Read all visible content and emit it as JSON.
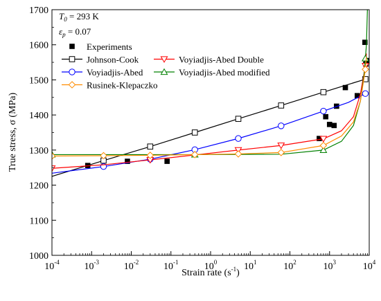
{
  "chart_data": {
    "type": "line",
    "xlabel_main": "Strain rate (s",
    "xlabel_sup": "-1",
    "xlabel_end": ")",
    "ylabel": "True stress, σ (MPa)",
    "x_scale": "log",
    "xlim": [
      0.0001,
      10000
    ],
    "ylim": [
      1000,
      1700
    ],
    "grid": false,
    "legend_position": "top-left",
    "x_ticks": [
      {
        "base": "10",
        "exp": "-4"
      },
      {
        "base": "10",
        "exp": "-3"
      },
      {
        "base": "10",
        "exp": "-2"
      },
      {
        "base": "10",
        "exp": "-1"
      },
      {
        "base": "10",
        "exp": "0"
      },
      {
        "base": "10",
        "exp": "1"
      },
      {
        "base": "10",
        "exp": "2"
      },
      {
        "base": "10",
        "exp": "3"
      },
      {
        "base": "10",
        "exp": "4"
      }
    ],
    "y_ticks": [
      "1000",
      "1100",
      "1200",
      "1300",
      "1400",
      "1500",
      "1600",
      "1700"
    ],
    "annotations": {
      "t0_main": "T",
      "t0_sub": "0",
      "t0_rest": " = 293 K",
      "ep_main": "ε",
      "ep_sub": "p",
      "ep_rest": " = 0.07"
    },
    "series": [
      {
        "name": "Experiments",
        "kind": "points",
        "color": "#000000",
        "marker": "filled-square",
        "points": [
          [
            0.0008,
            1256
          ],
          [
            0.008,
            1268
          ],
          [
            0.08,
            1268
          ],
          [
            550,
            1333
          ],
          [
            800,
            1395
          ],
          [
            1000,
            1373
          ],
          [
            1300,
            1370
          ],
          [
            1500,
            1425
          ],
          [
            2500,
            1478
          ],
          [
            5000,
            1455
          ],
          [
            7800,
            1607
          ],
          [
            8200,
            1545
          ],
          [
            8500,
            1555
          ]
        ]
      },
      {
        "name": "Johnson-Cook",
        "kind": "line",
        "color": "#000000",
        "marker": "open-square",
        "points": [
          [
            0.0001,
            1225
          ],
          [
            0.002,
            1270
          ],
          [
            0.03,
            1310
          ],
          [
            0.4,
            1350
          ],
          [
            5,
            1389
          ],
          [
            60,
            1427
          ],
          [
            700,
            1465
          ],
          [
            8000,
            1502
          ]
        ],
        "marker_x": [
          0.002,
          0.03,
          0.4,
          5,
          60,
          700,
          8000
        ]
      },
      {
        "name": "Voyiadjis-Abed",
        "kind": "line",
        "color": "#0000ff",
        "marker": "open-circle",
        "points": [
          [
            0.0001,
            1234
          ],
          [
            0.002,
            1253
          ],
          [
            0.03,
            1274
          ],
          [
            0.4,
            1301
          ],
          [
            5,
            1333
          ],
          [
            60,
            1369
          ],
          [
            700,
            1411
          ],
          [
            3000,
            1436
          ],
          [
            8000,
            1461
          ],
          [
            9000,
            1463
          ]
        ],
        "marker_x": [
          0.002,
          0.03,
          0.4,
          5,
          60,
          700,
          8000
        ]
      },
      {
        "name": "Voyiadjis-Abed Double",
        "kind": "line",
        "color": "#ff0000",
        "marker": "open-triangle-down",
        "points": [
          [
            0.0001,
            1248
          ],
          [
            0.002,
            1258
          ],
          [
            0.03,
            1272
          ],
          [
            0.4,
            1286
          ],
          [
            5,
            1300
          ],
          [
            60,
            1313
          ],
          [
            700,
            1332
          ],
          [
            2000,
            1355
          ],
          [
            4000,
            1395
          ],
          [
            6000,
            1460
          ],
          [
            8000,
            1540
          ],
          [
            8500,
            1575
          ]
        ],
        "marker_x": [
          0.0001,
          0.03,
          5,
          60,
          700,
          8000
        ]
      },
      {
        "name": "Voyiadjis-Abed modified",
        "kind": "line",
        "color": "#008000",
        "marker": "open-triangle-up",
        "points": [
          [
            0.0001,
            1287
          ],
          [
            0.002,
            1287
          ],
          [
            0.4,
            1287
          ],
          [
            60,
            1288
          ],
          [
            700,
            1300
          ],
          [
            2000,
            1325
          ],
          [
            4000,
            1370
          ],
          [
            6000,
            1440
          ],
          [
            7500,
            1520
          ],
          [
            8500,
            1600
          ],
          [
            9000,
            1700
          ]
        ],
        "marker_x": [
          0.0001,
          0.4,
          700,
          8000
        ]
      },
      {
        "name": "Rusinek-Klepaczko",
        "kind": "line",
        "color": "#ff8c00",
        "marker": "open-diamond",
        "points": [
          [
            0.0001,
            1283
          ],
          [
            0.002,
            1284
          ],
          [
            0.03,
            1285
          ],
          [
            0.4,
            1287
          ],
          [
            5,
            1289
          ],
          [
            60,
            1293
          ],
          [
            700,
            1313
          ],
          [
            2000,
            1340
          ],
          [
            4000,
            1380
          ],
          [
            6000,
            1440
          ],
          [
            8000,
            1530
          ],
          [
            8500,
            1565
          ]
        ],
        "marker_x": [
          0.0001,
          0.002,
          0.03,
          0.4,
          5,
          60,
          700,
          8000
        ]
      }
    ],
    "legend_rows": [
      [
        "Experiments"
      ],
      [
        "Johnson-Cook",
        "Voyiadjis-Abed Double"
      ],
      [
        "Voyiadjis-Abed",
        "Voyiadjis-Abed modified"
      ],
      [
        "Rusinek-Klepaczko"
      ]
    ]
  }
}
